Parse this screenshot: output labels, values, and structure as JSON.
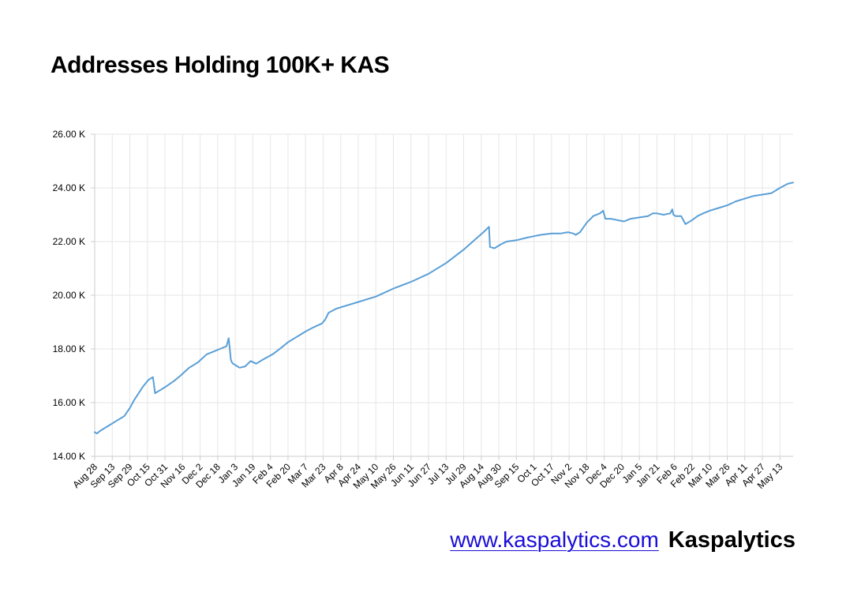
{
  "title": "Addresses Holding 100K+ KAS",
  "footer": {
    "link_text": "www.kaspalytics.com",
    "brand": "Kaspalytics"
  },
  "colors": {
    "line": "#5a9fd6",
    "grid": "#e6e6e6",
    "axis": "#cccccc",
    "text": "#000000",
    "link": "#1a0dd8"
  },
  "chart_data": {
    "type": "line",
    "title": "Addresses Holding 100K+ KAS",
    "xlabel": "",
    "ylabel": "",
    "ylim": [
      14000,
      26000
    ],
    "yticks": [
      14000,
      16000,
      18000,
      20000,
      22000,
      24000,
      26000
    ],
    "ytick_labels": [
      "14.00 K",
      "16.00 K",
      "18.00 K",
      "20.00 K",
      "22.00 K",
      "24.00 K",
      "26.00 K"
    ],
    "xlim": [
      "2023-08-28",
      "2025-05-25"
    ],
    "xticks": [
      "2023-08-28",
      "2023-09-13",
      "2023-09-29",
      "2023-10-15",
      "2023-10-31",
      "2023-11-16",
      "2023-12-02",
      "2023-12-18",
      "2024-01-03",
      "2024-01-19",
      "2024-02-04",
      "2024-02-20",
      "2024-03-07",
      "2024-03-23",
      "2024-04-08",
      "2024-04-24",
      "2024-05-10",
      "2024-05-26",
      "2024-06-11",
      "2024-06-27",
      "2024-07-13",
      "2024-07-29",
      "2024-08-14",
      "2024-08-30",
      "2024-09-15",
      "2024-10-01",
      "2024-10-17",
      "2024-11-02",
      "2024-11-18",
      "2024-12-04",
      "2024-12-20",
      "2025-01-05",
      "2025-01-21",
      "2025-02-06",
      "2025-02-22",
      "2025-03-10",
      "2025-03-26",
      "2025-04-11",
      "2025-04-27",
      "2025-05-13"
    ],
    "xtick_labels": [
      "Aug 28",
      "Sep 13",
      "Sep 29",
      "Oct 15",
      "Oct 31",
      "Nov 16",
      "Dec 2",
      "Dec 18",
      "Jan 3",
      "Jan 19",
      "Feb 4",
      "Feb 20",
      "Mar 7",
      "Mar 23",
      "Apr 8",
      "Apr 24",
      "May 10",
      "May 26",
      "Jun 11",
      "Jun 27",
      "Jul 13",
      "Jul 29",
      "Aug 14",
      "Aug 30",
      "Sep 15",
      "Oct 1",
      "Oct 17",
      "Nov 2",
      "Nov 18",
      "Dec 4",
      "Dec 20",
      "Jan 5",
      "Jan 21",
      "Feb 6",
      "Feb 22",
      "Mar 10",
      "Mar 26",
      "Apr 11",
      "Apr 27",
      "May 13"
    ],
    "grid": true,
    "legend": "none",
    "series": [
      {
        "x": [
          "2023-08-28",
          "2023-08-30",
          "2023-09-02",
          "2023-09-08",
          "2023-09-16",
          "2023-09-24",
          "2023-09-29",
          "2023-10-03",
          "2023-10-07",
          "2023-10-11",
          "2023-10-16",
          "2023-10-20",
          "2023-10-22",
          "2023-10-24",
          "2023-10-26",
          "2023-11-01",
          "2023-11-08",
          "2023-11-14",
          "2023-11-22",
          "2023-11-30",
          "2023-12-08",
          "2023-12-14",
          "2023-12-20",
          "2023-12-26",
          "2023-12-28",
          "2023-12-29",
          "2023-12-30",
          "2023-12-31",
          "2024-01-01",
          "2024-01-03",
          "2024-01-07",
          "2024-01-12",
          "2024-01-17",
          "2024-01-22",
          "2024-01-28",
          "2024-02-06",
          "2024-02-14",
          "2024-02-20",
          "2024-02-28",
          "2024-03-07",
          "2024-03-14",
          "2024-03-22",
          "2024-03-25",
          "2024-03-28",
          "2024-04-04",
          "2024-04-12",
          "2024-04-24",
          "2024-05-10",
          "2024-05-26",
          "2024-06-11",
          "2024-06-27",
          "2024-07-13",
          "2024-07-29",
          "2024-08-09",
          "2024-08-16",
          "2024-08-21",
          "2024-08-22",
          "2024-08-26",
          "2024-09-01",
          "2024-09-06",
          "2024-09-15",
          "2024-09-25",
          "2024-10-01",
          "2024-10-07",
          "2024-10-17",
          "2024-10-25",
          "2024-11-01",
          "2024-11-06",
          "2024-11-08",
          "2024-11-12",
          "2024-11-18",
          "2024-11-24",
          "2024-11-30",
          "2024-12-03",
          "2024-12-05",
          "2024-12-10",
          "2024-12-16",
          "2024-12-22",
          "2024-12-28",
          "2025-01-05",
          "2025-01-13",
          "2025-01-17",
          "2025-01-21",
          "2025-01-27",
          "2025-02-02",
          "2025-02-04",
          "2025-02-05",
          "2025-02-07",
          "2025-02-12",
          "2025-02-16",
          "2025-02-18",
          "2025-02-22",
          "2025-02-27",
          "2025-03-04",
          "2025-03-10",
          "2025-03-18",
          "2025-03-26",
          "2025-04-03",
          "2025-04-11",
          "2025-04-19",
          "2025-04-27",
          "2025-05-05",
          "2025-05-13",
          "2025-05-20",
          "2025-05-25"
        ],
        "y": [
          14900,
          14850,
          14950,
          15100,
          15300,
          15500,
          15800,
          16100,
          16350,
          16600,
          16850,
          16950,
          16350,
          16400,
          16450,
          16600,
          16800,
          17000,
          17300,
          17500,
          17800,
          17900,
          18000,
          18100,
          18400,
          18000,
          17600,
          17500,
          17450,
          17400,
          17300,
          17350,
          17550,
          17450,
          17600,
          17800,
          18050,
          18250,
          18450,
          18650,
          18800,
          18950,
          19100,
          19350,
          19500,
          19600,
          19750,
          19950,
          20250,
          20500,
          20800,
          21200,
          21700,
          22100,
          22350,
          22550,
          21800,
          21750,
          21900,
          22000,
          22050,
          22150,
          22200,
          22250,
          22300,
          22300,
          22350,
          22300,
          22250,
          22350,
          22700,
          22950,
          23050,
          23150,
          22850,
          22850,
          22800,
          22750,
          22850,
          22900,
          22950,
          23050,
          23050,
          23000,
          23050,
          23200,
          23000,
          22950,
          22950,
          22650,
          22700,
          22800,
          22950,
          23050,
          23150,
          23250,
          23350,
          23500,
          23600,
          23700,
          23750,
          23800,
          24000,
          24150,
          24200
        ]
      }
    ]
  }
}
